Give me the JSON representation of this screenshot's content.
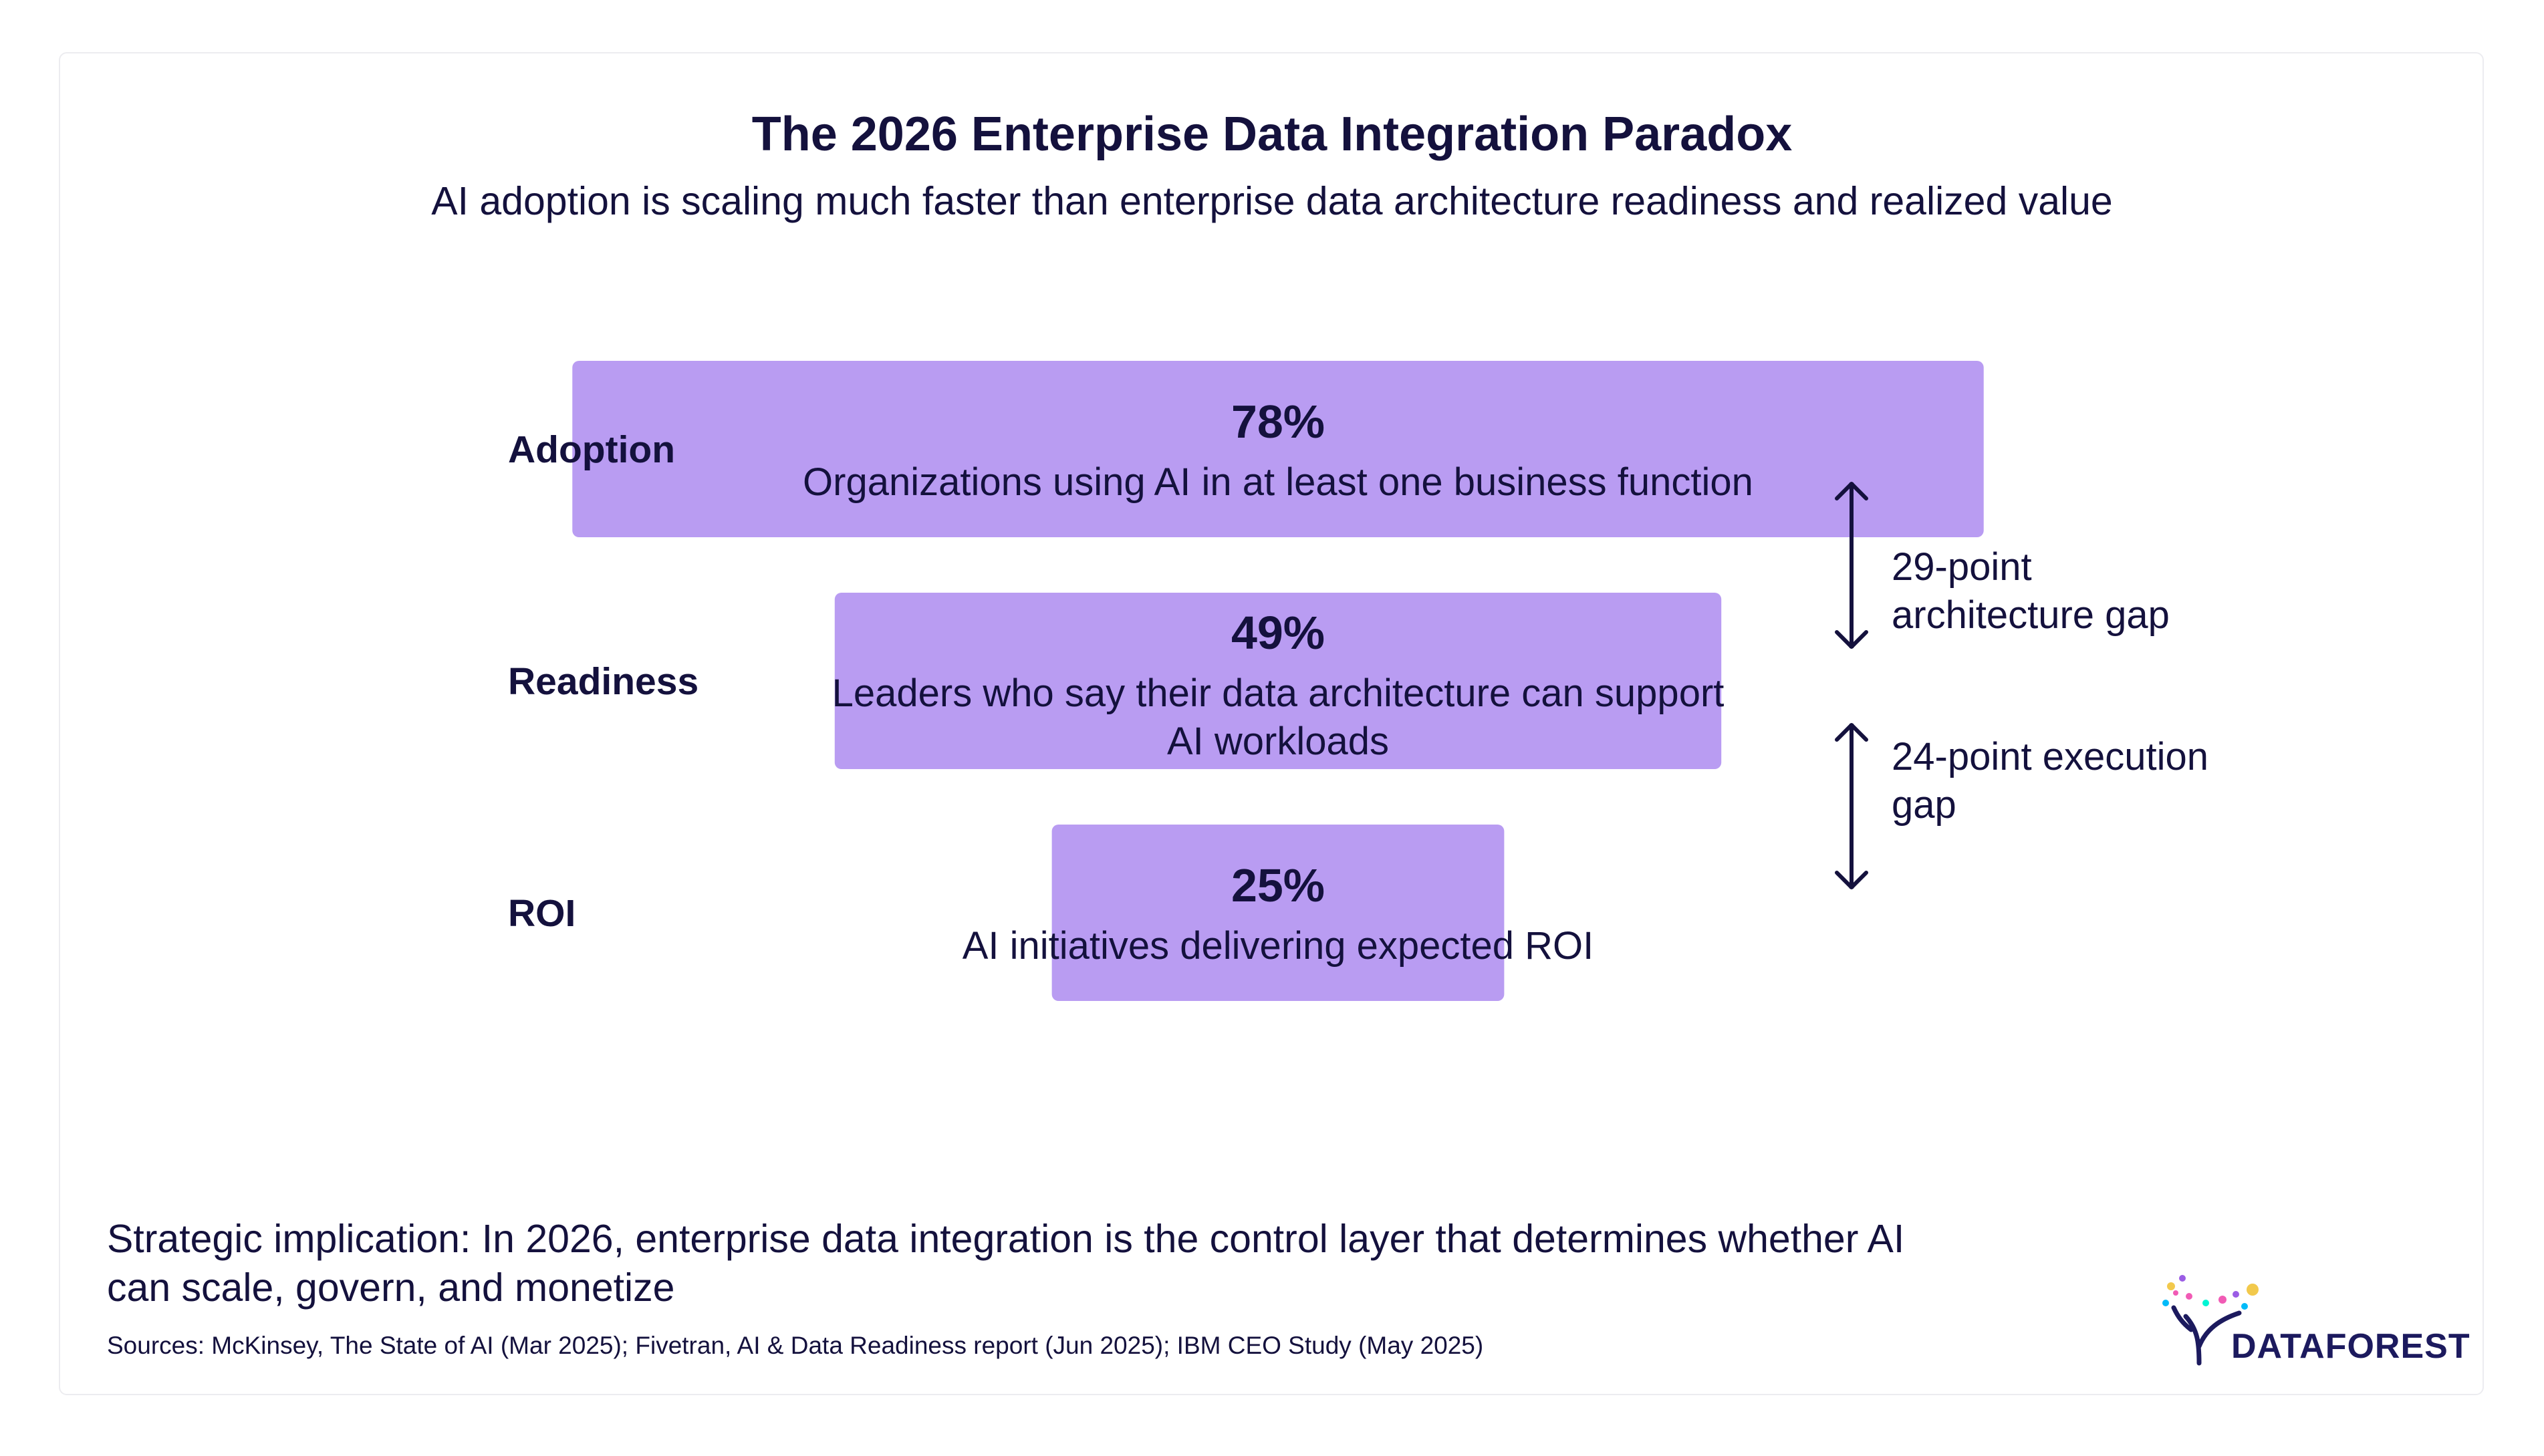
{
  "chart_data": {
    "type": "bar",
    "title": "The 2026 Enterprise Data Integration Paradox",
    "subtitle": "AI adoption is scaling much faster than enterprise data architecture readiness and realized value",
    "categories": [
      "Adoption",
      "Readiness",
      "ROI"
    ],
    "values": [
      78,
      49,
      25
    ],
    "value_labels": [
      "78%",
      "49%",
      "25%"
    ],
    "descriptions": [
      [
        "Organizations using AI in at least one business function"
      ],
      [
        "Leaders who say their data architecture can support",
        "AI workloads"
      ],
      [
        "AI initiatives delivering expected ROI"
      ]
    ],
    "unit": "%",
    "gaps": [
      {
        "from": "Adoption",
        "to": "Readiness",
        "points": 29,
        "label_lines": [
          "29-point",
          "architecture gap"
        ]
      },
      {
        "from": "Readiness",
        "to": "ROI",
        "points": 24,
        "label_lines": [
          "24-point execution",
          "gap"
        ]
      }
    ],
    "bar_color": "#b99cf2",
    "text_color": "#14113d",
    "grid": false,
    "legend": "none"
  },
  "footer": {
    "implication": "Strategic implication: In 2026, enterprise data integration is the control layer that determines whether AI can scale, govern, and monetize",
    "sources": "Sources: McKinsey, The State of AI (Mar 2025); Fivetran, AI & Data Readiness report (Jun 2025); IBM CEO Study (May 2025)"
  },
  "logo": {
    "text": "DATAFOREST",
    "icon": "tree-icon"
  }
}
